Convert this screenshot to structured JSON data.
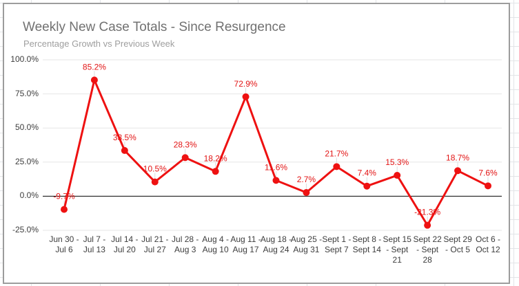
{
  "chart_data": {
    "type": "line",
    "title": "Weekly New Case Totals - Since Resurgence",
    "subtitle": "Percentage Growth vs Previous Week",
    "categories": [
      "Jun 30 - Jul 6",
      "Jul 7 - Jul 13",
      "Jul 14 - Jul 20",
      "Jul 21 - Jul 27",
      "Jul 28 - Aug 3",
      "Aug 4 - Aug 10",
      "Aug 11 - Aug 17",
      "Aug 18 - Aug 24",
      "Aug 25 - Aug 31",
      "Sept 1 - Sept 7",
      "Sept 8 - Sept 14",
      "Sept 15 - Sept 21",
      "Sept 22 - Sept 28",
      "Sept 29 - Oct 5",
      "Oct 6 - Oct 12"
    ],
    "values": [
      -9.7,
      85.2,
      33.5,
      10.5,
      28.3,
      18.2,
      72.9,
      11.6,
      2.7,
      21.7,
      7.4,
      15.3,
      -21.3,
      18.7,
      7.6
    ],
    "data_labels": [
      "-9.7%",
      "85.2%",
      "33.5%",
      "10.5%",
      "28.3%",
      "18.2%",
      "72.9%",
      "11.6%",
      "2.7%",
      "21.7%",
      "7.4%",
      "15.3%",
      "-21.3%",
      "18.7%",
      "7.6%"
    ],
    "y_axis": {
      "min": -25,
      "max": 100,
      "ticks": [
        {
          "label": "100.0%",
          "value": 100
        },
        {
          "label": "75.0%",
          "value": 75
        },
        {
          "label": "50.0%",
          "value": 50
        },
        {
          "label": "25.0%",
          "value": 25
        },
        {
          "label": "0.0%",
          "value": 0
        },
        {
          "label": "-25.0%",
          "value": -25
        }
      ]
    },
    "grid": true,
    "legend": "none",
    "colors": {
      "series": "#ee1111",
      "data_label": "#e21414",
      "gridline": "#e6e6e6",
      "zero_axis": "#000000",
      "leader_line": "#dcdcdc",
      "axis_text": "#3c3c3c",
      "title_text": "#717171",
      "subtitle_text": "#9e9e9e",
      "card_border": "#9c9c9c",
      "sheet_gridline": "#e2e4e7"
    }
  }
}
